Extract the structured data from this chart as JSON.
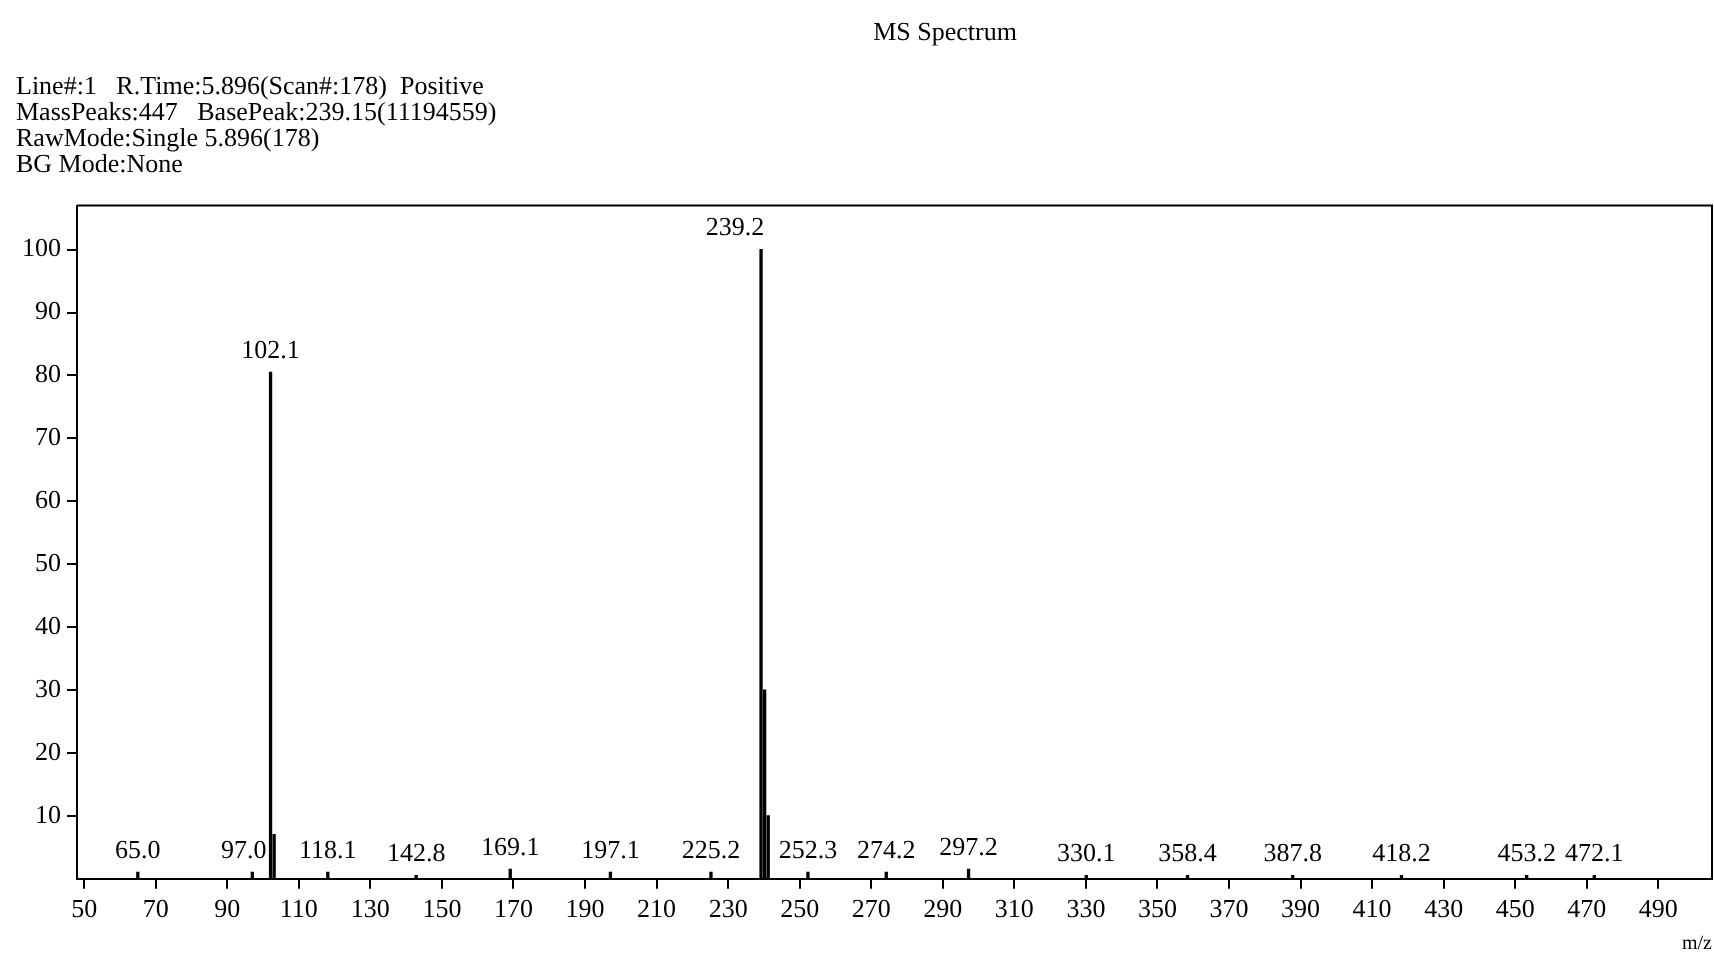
{
  "chart_data": {
    "type": "bar",
    "title": "MS Spectrum",
    "xlabel": "m/z",
    "annotations": [
      "Line#:1   R.Time:5.896(Scan#:178)  Positive",
      "MassPeaks:447   BasePeak:239.15(11194559)",
      "RawMode:Single 5.896(178)",
      "BG Mode:None",
      {
        "text": "65.0",
        "x": 65.0,
        "y": 1
      },
      {
        "text": "97.0",
        "x": 97.0,
        "y": 1
      },
      {
        "text": "102.1",
        "x": 102.1,
        "y": 80.5
      },
      {
        "text": "118.1",
        "x": 118.1,
        "y": 1
      },
      {
        "text": "142.8",
        "x": 142.8,
        "y": 0.5
      },
      {
        "text": "169.1",
        "x": 169.1,
        "y": 1.5
      },
      {
        "text": "197.1",
        "x": 197.1,
        "y": 1
      },
      {
        "text": "225.2",
        "x": 225.2,
        "y": 1
      },
      {
        "text": "239.2",
        "x": 239.2,
        "y": 100
      },
      {
        "text": "252.3",
        "x": 252.3,
        "y": 1
      },
      {
        "text": "274.2",
        "x": 274.2,
        "y": 1
      },
      {
        "text": "297.2",
        "x": 297.2,
        "y": 1.5
      },
      {
        "text": "330.1",
        "x": 330.1,
        "y": 0.5
      },
      {
        "text": "358.4",
        "x": 358.4,
        "y": 0.5
      },
      {
        "text": "387.8",
        "x": 387.8,
        "y": 0.5
      },
      {
        "text": "418.2",
        "x": 418.2,
        "y": 0.5
      },
      {
        "text": "453.2",
        "x": 453.2,
        "y": 0.5
      },
      {
        "text": "472.1",
        "x": 472.1,
        "y": 0.5
      }
    ],
    "x": [
      65.0,
      97.0,
      102.1,
      103.1,
      118.1,
      142.8,
      169.1,
      197.1,
      225.2,
      239.2,
      240.2,
      241.2,
      252.3,
      274.2,
      297.2,
      330.1,
      358.4,
      387.8,
      418.2,
      453.2,
      472.1
    ],
    "values": [
      1,
      1,
      80.5,
      7,
      1,
      0.5,
      1.5,
      1,
      1,
      100,
      30,
      10,
      1,
      1,
      1.5,
      0.5,
      0.5,
      0.5,
      0.5,
      0.5,
      0.5
    ],
    "color": "#000000",
    "xlim": [
      48,
      505
    ],
    "xticks": [
      50,
      70,
      90,
      110,
      130,
      150,
      170,
      190,
      210,
      230,
      250,
      270,
      290,
      310,
      330,
      350,
      370,
      390,
      410,
      430,
      450,
      470,
      490
    ],
    "ylim": [
      0,
      107
    ],
    "yticks": [
      10,
      20,
      30,
      40,
      50,
      60,
      70,
      80,
      90,
      100
    ],
    "grid": false,
    "legend": false
  }
}
